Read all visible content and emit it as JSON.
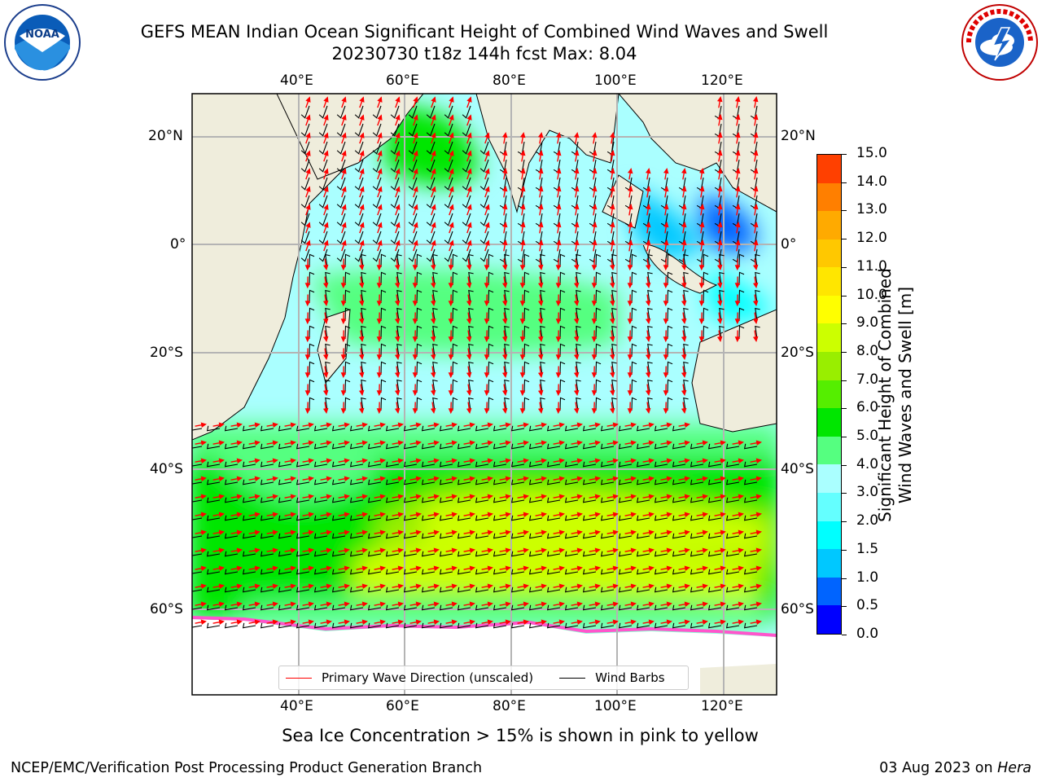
{
  "header": {
    "title_line1": "GEFS MEAN Indian Ocean Significant Height of Combined Wind Waves and Swell",
    "title_line2": "20230730 t18z 144h fcst   Max: 8.04"
  },
  "logos": {
    "left": "noaa-logo",
    "right": "nws-logo"
  },
  "map": {
    "lon_ticks_top": [
      "40°E",
      "60°E",
      "80°E",
      "100°E",
      "120°E"
    ],
    "lon_ticks_bottom": [
      "40°E",
      "60°E",
      "80°E",
      "100°E",
      "120°E"
    ],
    "lat_ticks_left": [
      "20°N",
      "0°",
      "20°S",
      "40°S",
      "60°S"
    ],
    "lat_ticks_right": [
      "20°N",
      "0°",
      "20°S",
      "40°S",
      "60°S"
    ],
    "colors": {
      "land": "#efeddc",
      "ice": "#ffffff",
      "grid": "#b4b4b4"
    }
  },
  "legend": {
    "items": [
      {
        "label": "Primary Wave Direction (unscaled)",
        "color": "#ff0000"
      },
      {
        "label": "Wind Barbs",
        "color": "#000000"
      }
    ]
  },
  "colorbar": {
    "label_line1": "Significant Height of Combined",
    "label_line2": "Wind Waves and Swell [m]",
    "ticks": [
      "0.0",
      "0.5",
      "1.0",
      "1.5",
      "2.0",
      "3.0",
      "4.0",
      "5.0",
      "6.0",
      "7.0",
      "8.0",
      "9.0",
      "10.0",
      "11.0",
      "12.0",
      "13.0",
      "14.0",
      "15.0"
    ],
    "colors": [
      "#0000ff",
      "#0064ff",
      "#00c8ff",
      "#00ffff",
      "#64ffff",
      "#aaffff",
      "#55ff80",
      "#00e600",
      "#55ee00",
      "#99ee00",
      "#ccff00",
      "#ffff00",
      "#ffe600",
      "#ffc800",
      "#ffaa00",
      "#ff7f00",
      "#ff4000",
      "#ff0000"
    ]
  },
  "notes": {
    "sea_ice": "Sea Ice Concentration > 15% is shown in pink to yellow"
  },
  "footer": {
    "left": "NCEP/EMC/Verification Post Processing Product Generation Branch",
    "date": "03 Aug 2023 on ",
    "machine": "Hera"
  }
}
